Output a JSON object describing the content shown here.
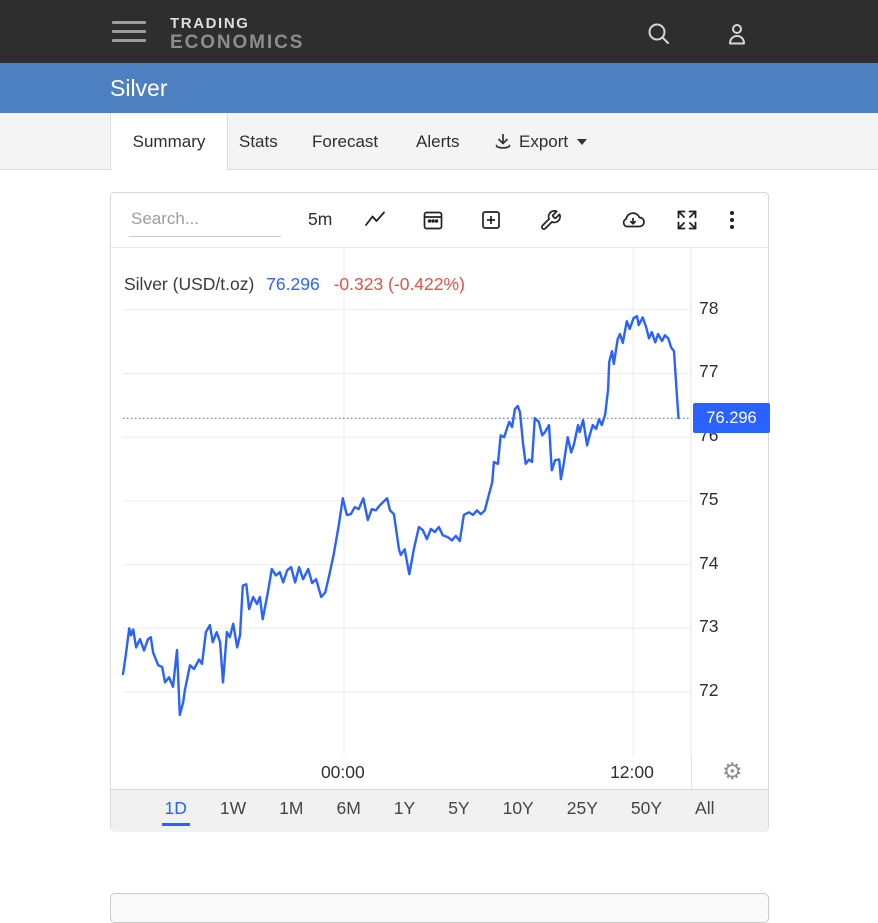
{
  "topbar": {
    "logo_line1": "TRADING",
    "logo_line2": "ECONOMICS"
  },
  "banner": {
    "title": "Silver"
  },
  "tabs": {
    "items": [
      "Summary",
      "Stats",
      "Forecast",
      "Alerts"
    ],
    "export_label": "Export",
    "active": "Summary"
  },
  "toolbar": {
    "search_placeholder": "Search...",
    "interval_label": "5m",
    "icons": [
      "line-style",
      "calendar",
      "compare-add",
      "tools-wrench",
      "download-cloud",
      "fullscreen-expand",
      "more-kebab"
    ]
  },
  "chart": {
    "legend": {
      "name": "Silver (USD/t.oz)",
      "price": "76.296",
      "change": "-0.323 (-0.422%)"
    },
    "price_label": "76.296"
  },
  "ranges": {
    "items": [
      "1D",
      "1W",
      "1M",
      "6M",
      "1Y",
      "5Y",
      "10Y",
      "25Y",
      "50Y",
      "All"
    ],
    "active": "1D"
  },
  "colors": {
    "accent": "#2962ff",
    "negative": "#e2504a",
    "banner": "#4c80c0",
    "topbar": "#2e2e2e",
    "gridline": "#ececec"
  },
  "chart_data": {
    "type": "line",
    "title": "Silver (USD/t.oz)",
    "interval": "5m",
    "last_price": 76.296,
    "change": -0.323,
    "change_pct": "-0.422%",
    "ylim": [
      71.01,
      78.97
    ],
    "y_ticks": [
      78,
      77,
      76,
      75,
      74,
      73,
      72
    ],
    "x_ticks": [
      {
        "label": "00:00",
        "f": 0.389
      },
      {
        "label": "12:00",
        "f": 0.898
      }
    ],
    "grid": true,
    "legend_position": "top-left",
    "points": [
      [
        0.0,
        72.28
      ],
      [
        0.005,
        72.58
      ],
      [
        0.011,
        73.0
      ],
      [
        0.014,
        72.89
      ],
      [
        0.018,
        72.98
      ],
      [
        0.023,
        72.7
      ],
      [
        0.03,
        72.83
      ],
      [
        0.037,
        72.65
      ],
      [
        0.044,
        72.83
      ],
      [
        0.049,
        72.86
      ],
      [
        0.053,
        72.62
      ],
      [
        0.062,
        72.42
      ],
      [
        0.069,
        72.39
      ],
      [
        0.074,
        72.15
      ],
      [
        0.081,
        72.23
      ],
      [
        0.088,
        72.08
      ],
      [
        0.095,
        72.66
      ],
      [
        0.1,
        71.64
      ],
      [
        0.106,
        71.84
      ],
      [
        0.109,
        72.03
      ],
      [
        0.118,
        72.42
      ],
      [
        0.125,
        72.36
      ],
      [
        0.134,
        72.51
      ],
      [
        0.139,
        72.44
      ],
      [
        0.146,
        72.94
      ],
      [
        0.153,
        73.05
      ],
      [
        0.158,
        72.78
      ],
      [
        0.165,
        72.94
      ],
      [
        0.171,
        72.78
      ],
      [
        0.176,
        72.15
      ],
      [
        0.183,
        72.94
      ],
      [
        0.188,
        72.86
      ],
      [
        0.194,
        73.07
      ],
      [
        0.201,
        72.7
      ],
      [
        0.206,
        72.89
      ],
      [
        0.211,
        73.67
      ],
      [
        0.217,
        73.69
      ],
      [
        0.222,
        73.3
      ],
      [
        0.229,
        73.49
      ],
      [
        0.236,
        73.38
      ],
      [
        0.241,
        73.49
      ],
      [
        0.246,
        73.14
      ],
      [
        0.255,
        73.56
      ],
      [
        0.262,
        73.93
      ],
      [
        0.269,
        73.83
      ],
      [
        0.276,
        73.88
      ],
      [
        0.282,
        73.72
      ],
      [
        0.289,
        73.91
      ],
      [
        0.296,
        73.96
      ],
      [
        0.303,
        73.72
      ],
      [
        0.31,
        73.96
      ],
      [
        0.317,
        73.77
      ],
      [
        0.326,
        73.93
      ],
      [
        0.333,
        73.71
      ],
      [
        0.34,
        73.77
      ],
      [
        0.349,
        73.49
      ],
      [
        0.356,
        73.56
      ],
      [
        0.363,
        73.83
      ],
      [
        0.371,
        74.16
      ],
      [
        0.38,
        74.62
      ],
      [
        0.387,
        75.04
      ],
      [
        0.394,
        74.78
      ],
      [
        0.401,
        74.79
      ],
      [
        0.408,
        74.9
      ],
      [
        0.415,
        74.87
      ],
      [
        0.423,
        75.04
      ],
      [
        0.431,
        74.7
      ],
      [
        0.438,
        74.87
      ],
      [
        0.445,
        74.85
      ],
      [
        0.451,
        74.92
      ],
      [
        0.458,
        74.98
      ],
      [
        0.465,
        75.04
      ],
      [
        0.47,
        74.85
      ],
      [
        0.477,
        74.79
      ],
      [
        0.486,
        74.24
      ],
      [
        0.489,
        74.15
      ],
      [
        0.496,
        74.24
      ],
      [
        0.504,
        73.85
      ],
      [
        0.512,
        74.24
      ],
      [
        0.521,
        74.59
      ],
      [
        0.528,
        74.54
      ],
      [
        0.535,
        74.4
      ],
      [
        0.542,
        74.56
      ],
      [
        0.549,
        74.51
      ],
      [
        0.556,
        74.59
      ],
      [
        0.563,
        74.46
      ],
      [
        0.572,
        74.43
      ],
      [
        0.579,
        74.38
      ],
      [
        0.586,
        74.45
      ],
      [
        0.593,
        74.37
      ],
      [
        0.6,
        74.78
      ],
      [
        0.609,
        74.82
      ],
      [
        0.616,
        74.78
      ],
      [
        0.623,
        74.85
      ],
      [
        0.63,
        74.79
      ],
      [
        0.637,
        74.85
      ],
      [
        0.644,
        75.09
      ],
      [
        0.65,
        75.29
      ],
      [
        0.653,
        75.61
      ],
      [
        0.66,
        75.58
      ],
      [
        0.665,
        76.03
      ],
      [
        0.671,
        76.0
      ],
      [
        0.68,
        76.24
      ],
      [
        0.685,
        76.16
      ],
      [
        0.69,
        76.44
      ],
      [
        0.695,
        76.49
      ],
      [
        0.699,
        76.39
      ],
      [
        0.704,
        75.92
      ],
      [
        0.709,
        75.58
      ],
      [
        0.715,
        75.65
      ],
      [
        0.72,
        75.61
      ],
      [
        0.725,
        76.3
      ],
      [
        0.732,
        76.24
      ],
      [
        0.738,
        76.03
      ],
      [
        0.743,
        76.08
      ],
      [
        0.75,
        76.19
      ],
      [
        0.755,
        75.48
      ],
      [
        0.761,
        75.64
      ],
      [
        0.768,
        75.65
      ],
      [
        0.771,
        75.34
      ],
      [
        0.776,
        75.59
      ],
      [
        0.783,
        76.0
      ],
      [
        0.789,
        75.76
      ],
      [
        0.794,
        75.89
      ],
      [
        0.801,
        76.19
      ],
      [
        0.804,
        76.08
      ],
      [
        0.81,
        76.27
      ],
      [
        0.817,
        75.87
      ],
      [
        0.82,
        75.98
      ],
      [
        0.827,
        76.19
      ],
      [
        0.833,
        76.13
      ],
      [
        0.838,
        76.28
      ],
      [
        0.843,
        76.19
      ],
      [
        0.849,
        76.36
      ],
      [
        0.854,
        76.75
      ],
      [
        0.856,
        77.18
      ],
      [
        0.861,
        77.35
      ],
      [
        0.864,
        77.15
      ],
      [
        0.871,
        77.54
      ],
      [
        0.875,
        77.62
      ],
      [
        0.88,
        77.48
      ],
      [
        0.887,
        77.82
      ],
      [
        0.892,
        77.7
      ],
      [
        0.899,
        77.87
      ],
      [
        0.905,
        77.9
      ],
      [
        0.908,
        77.76
      ],
      [
        0.915,
        77.88
      ],
      [
        0.921,
        77.73
      ],
      [
        0.926,
        77.55
      ],
      [
        0.931,
        77.65
      ],
      [
        0.937,
        77.49
      ],
      [
        0.942,
        77.62
      ],
      [
        0.949,
        77.51
      ],
      [
        0.954,
        77.6
      ],
      [
        0.96,
        77.55
      ],
      [
        0.965,
        77.41
      ],
      [
        0.97,
        77.35
      ],
      [
        0.974,
        76.82
      ],
      [
        0.978,
        76.3
      ]
    ]
  }
}
